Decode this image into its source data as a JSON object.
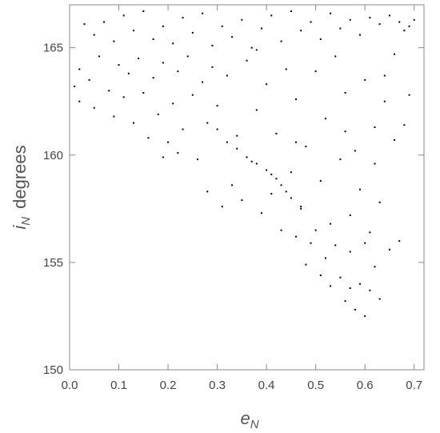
{
  "chart_data": {
    "type": "scatter",
    "x_label": {
      "base": "e",
      "subscript": "N"
    },
    "y_label": {
      "base": "i",
      "subscript": "N",
      "unit": "degrees"
    },
    "xlim": [
      0,
      0.72
    ],
    "ylim": [
      150,
      167
    ],
    "xticks": [
      {
        "value": 0,
        "label": "0.0"
      },
      0.1,
      0.2,
      0.3,
      0.4,
      0.5,
      0.6,
      0.7
    ],
    "yticks": [
      150,
      155,
      160,
      165
    ],
    "grid": false,
    "series": [
      {
        "color": "#000000",
        "x": [
          0.03,
          0.05,
          0.07,
          0.09,
          0.11,
          0.13,
          0.15,
          0.17,
          0.19,
          0.21,
          0.23,
          0.25,
          0.27,
          0.29,
          0.31,
          0.33,
          0.35,
          0.37,
          0.39,
          0.41,
          0.43,
          0.45,
          0.47,
          0.49,
          0.51,
          0.53,
          0.55,
          0.57,
          0.59,
          0.61,
          0.63,
          0.65,
          0.67,
          0.69,
          0.7,
          0.68,
          0.66,
          0.64,
          0.01,
          0.02,
          0.02,
          0.04,
          0.05,
          0.06,
          0.08,
          0.09,
          0.1,
          0.11,
          0.12,
          0.13,
          0.14,
          0.15,
          0.16,
          0.17,
          0.18,
          0.19,
          0.2,
          0.21,
          0.22,
          0.23,
          0.24,
          0.25,
          0.26,
          0.27,
          0.28,
          0.29,
          0.3,
          0.19,
          0.22,
          0.32,
          0.34,
          0.36,
          0.38,
          0.4,
          0.42,
          0.44,
          0.46,
          0.48,
          0.5,
          0.52,
          0.54,
          0.56,
          0.58,
          0.6,
          0.62,
          0.64,
          0.66,
          0.68,
          0.69,
          0.33,
          0.35,
          0.37,
          0.39,
          0.41,
          0.43,
          0.45,
          0.47,
          0.49,
          0.51,
          0.53,
          0.55,
          0.57,
          0.59,
          0.61,
          0.63,
          0.65,
          0.67,
          0.62,
          0.56,
          0.46,
          0.38,
          0.28,
          0.31,
          0.3,
          0.32,
          0.34,
          0.36,
          0.38,
          0.4,
          0.41,
          0.42,
          0.43,
          0.44,
          0.45,
          0.47,
          0.46,
          0.48,
          0.5,
          0.52,
          0.53,
          0.54,
          0.55,
          0.56,
          0.57,
          0.58,
          0.59,
          0.6,
          0.61,
          0.62,
          0.63,
          0.6,
          0.57,
          0.51
        ],
        "values": [
          166.1,
          165.6,
          166.2,
          165.3,
          166.5,
          165.8,
          166.7,
          165.4,
          166.0,
          165.2,
          166.4,
          165.7,
          166.6,
          165.1,
          166.0,
          165.5,
          166.3,
          165.0,
          165.9,
          166.5,
          165.3,
          166.7,
          165.8,
          166.2,
          165.4,
          166.6,
          165.9,
          166.3,
          165.6,
          166.4,
          166.1,
          166.5,
          166.2,
          166.0,
          166.3,
          165.8,
          164.7,
          163.7,
          163.2,
          162.5,
          164.0,
          163.5,
          162.2,
          164.6,
          163.0,
          161.8,
          164.2,
          162.7,
          163.8,
          161.5,
          164.5,
          162.9,
          160.8,
          163.6,
          161.9,
          164.3,
          160.6,
          162.4,
          163.9,
          161.2,
          164.6,
          162.8,
          159.8,
          163.4,
          161.5,
          164.1,
          162.3,
          159.9,
          160.1,
          163.7,
          160.9,
          164.4,
          162.1,
          163.3,
          161.0,
          164.0,
          162.6,
          160.4,
          163.9,
          161.7,
          164.6,
          162.9,
          160.2,
          163.5,
          161.3,
          162.5,
          160.7,
          161.4,
          162.8,
          158.6,
          157.9,
          159.7,
          157.3,
          158.2,
          156.5,
          159.2,
          157.6,
          155.9,
          158.8,
          156.8,
          159.8,
          157.2,
          158.4,
          156.4,
          157.8,
          155.6,
          156.0,
          159.6,
          161.1,
          160.6,
          164.9,
          158.3,
          157.6,
          161.2,
          160.6,
          160.3,
          159.9,
          159.6,
          159.3,
          159.1,
          158.9,
          158.6,
          158.3,
          158.0,
          157.5,
          156.2,
          154.9,
          156.5,
          155.2,
          153.9,
          155.8,
          154.3,
          153.2,
          155.5,
          152.8,
          154.0,
          152.5,
          153.7,
          154.8,
          153.3,
          155.9,
          153.8,
          154.4
        ]
      }
    ]
  }
}
